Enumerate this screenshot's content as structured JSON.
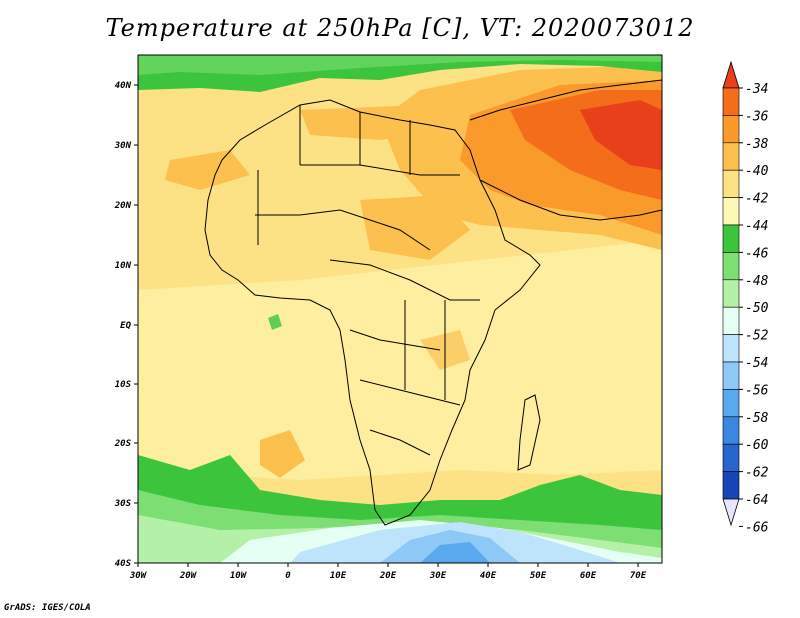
{
  "title": "Temperature at 250hPa [C], VT: 2020073012",
  "credit": "GrADS: IGES/COLA",
  "map": {
    "lat_labels": [
      "40N",
      "30N",
      "20N",
      "10N",
      "EQ",
      "10S",
      "20S",
      "30S",
      "40S"
    ],
    "lon_labels": [
      "30W",
      "20W",
      "10W",
      "0",
      "10E",
      "20E",
      "30E",
      "40E",
      "50E",
      "60E",
      "70E"
    ],
    "variable": "Temperature",
    "level": "250hPa",
    "units": "C",
    "valid_time": "2020073012"
  },
  "colorbar": {
    "labels": [
      "-34",
      "-36",
      "-38",
      "-40",
      "-42",
      "-44",
      "-46",
      "-48",
      "-50",
      "-52",
      "-54",
      "-56",
      "-58",
      "-60",
      "-62",
      "-64",
      "-66"
    ],
    "colors": [
      "#e8401a",
      "#f46d1a",
      "#f99a2a",
      "#fbc04e",
      "#fde285",
      "#fdf8b6",
      "#3cc43c",
      "#7cde73",
      "#b4f0a8",
      "#e6fff4",
      "#bde4fb",
      "#8ec8f6",
      "#5aa8ee",
      "#3a86e0",
      "#2865cc",
      "#1845b5",
      "#0a1f8a"
    ]
  }
}
